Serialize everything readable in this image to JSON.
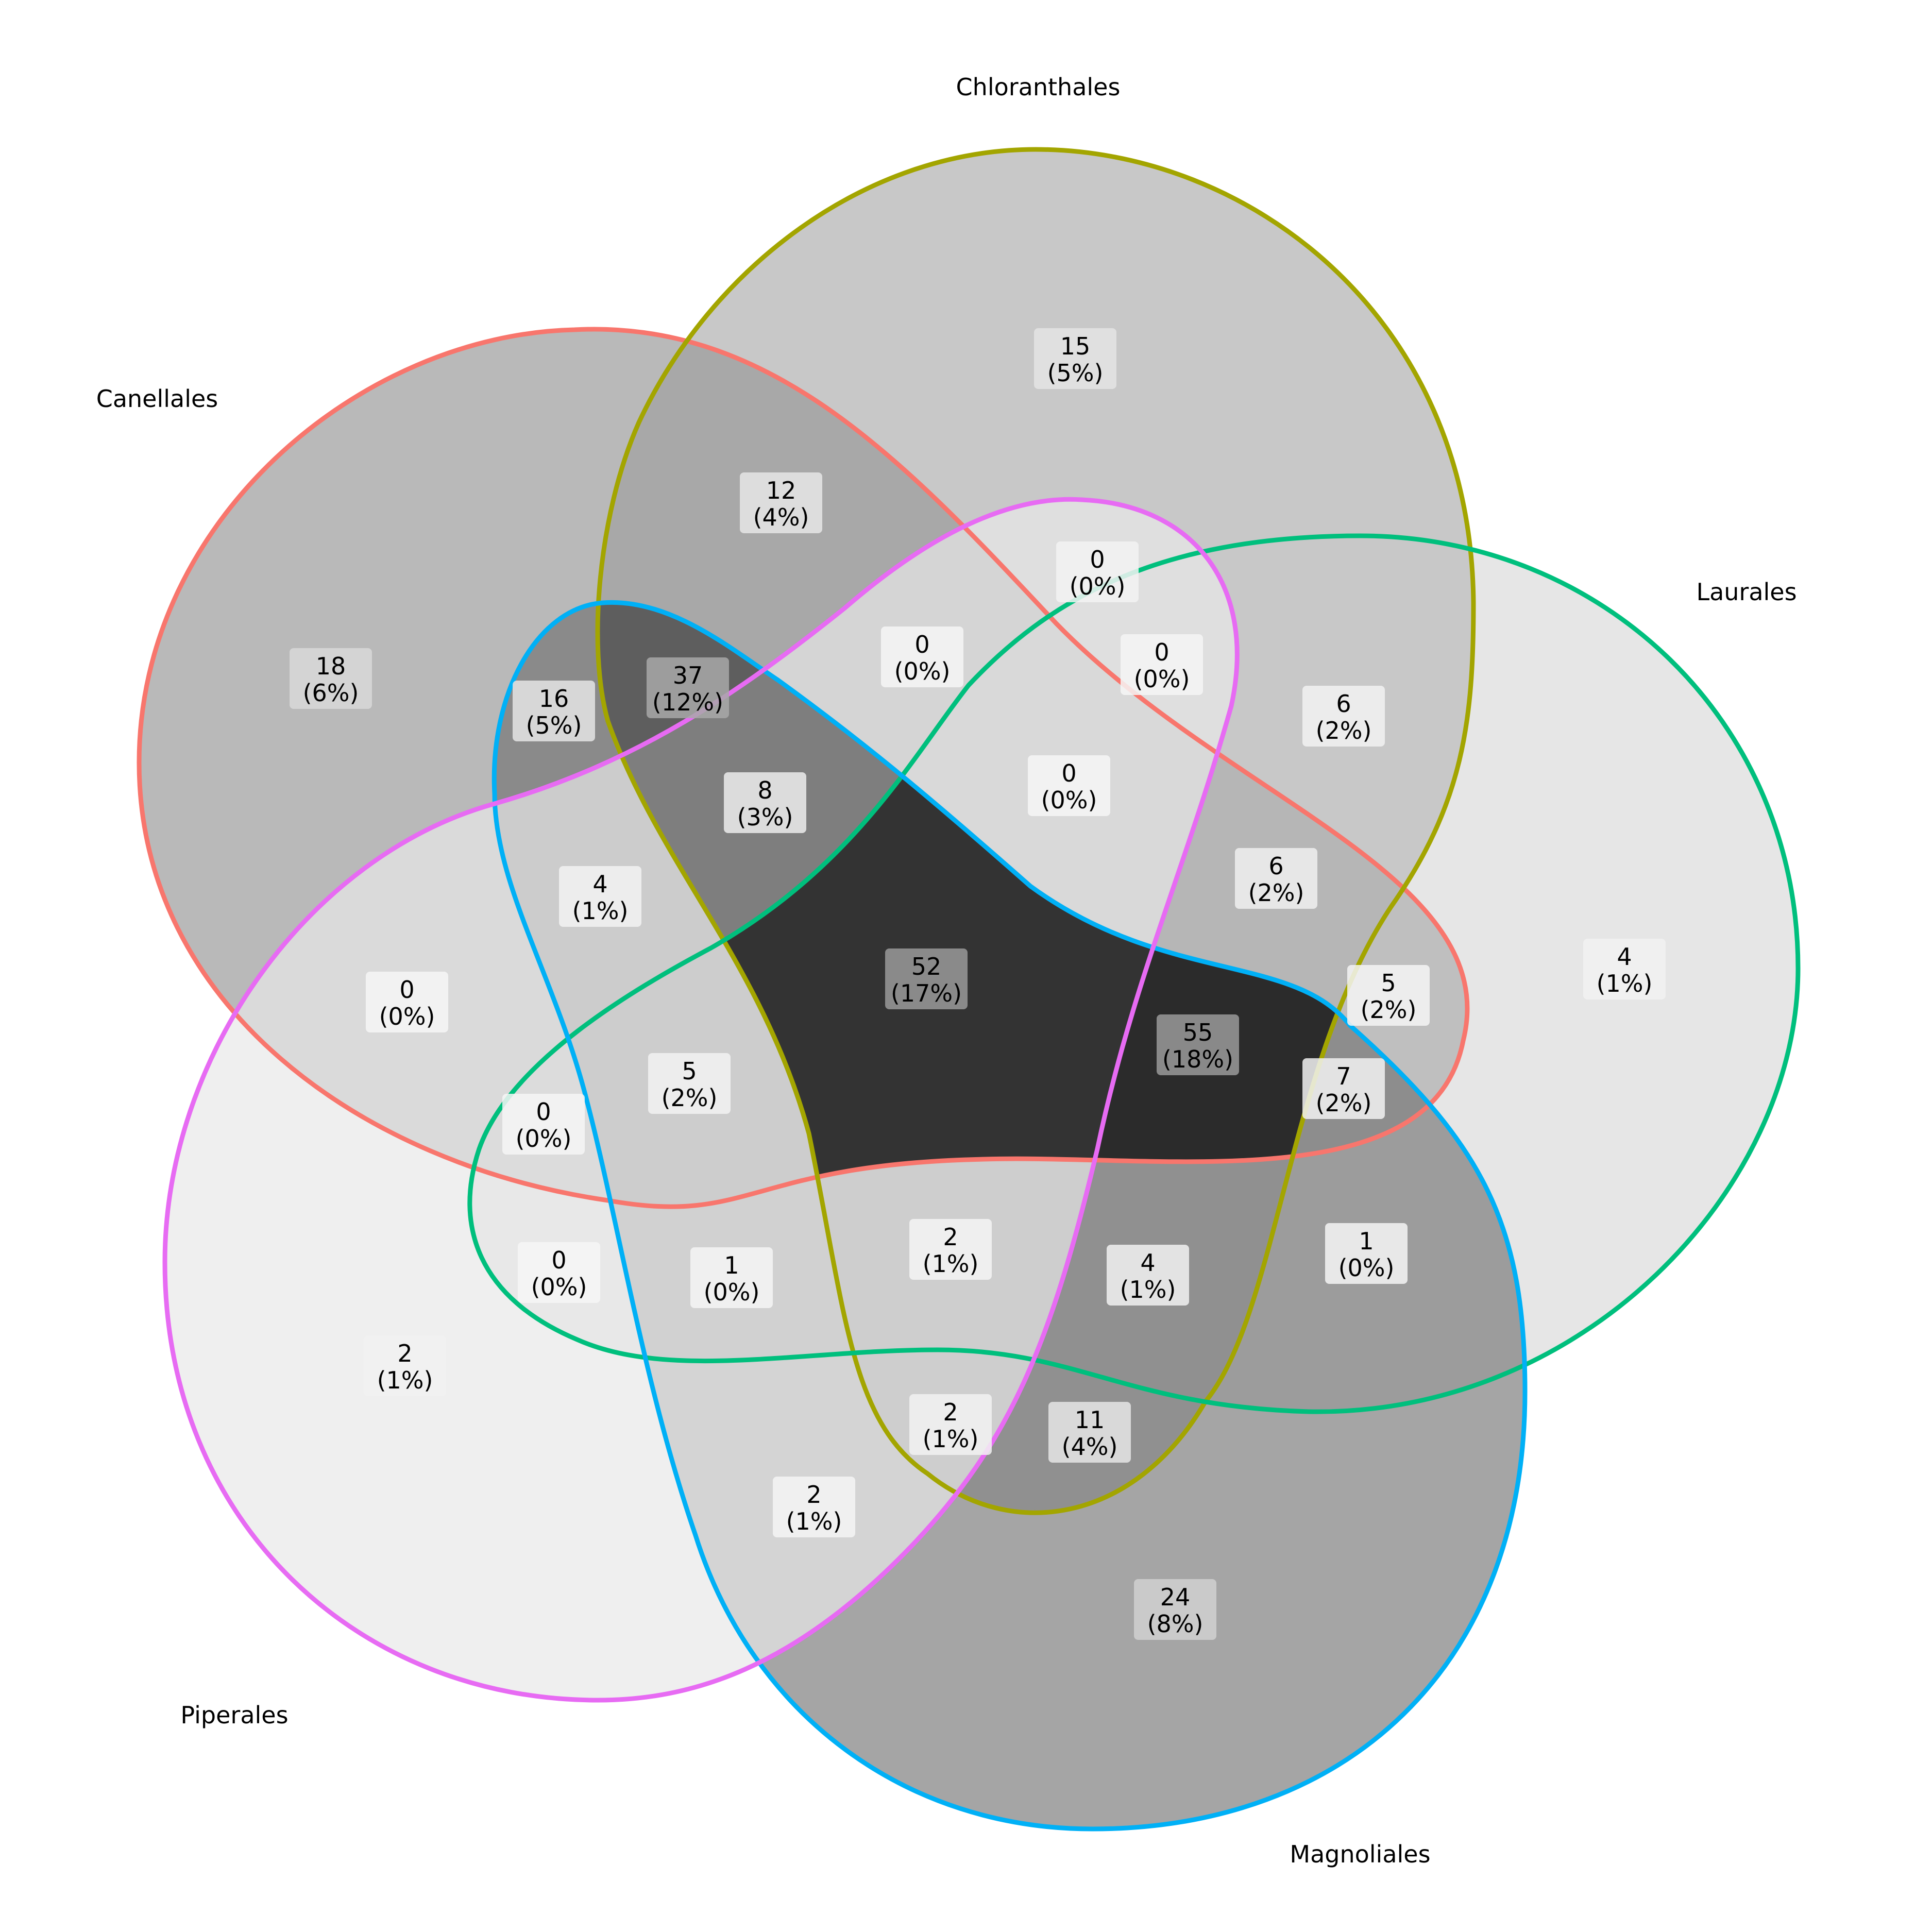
{
  "chart_data": {
    "type": "venn",
    "sets": [
      {
        "name": "Canellales",
        "color": "#F8766D"
      },
      {
        "name": "Chloranthales",
        "color": "#A3A500"
      },
      {
        "name": "Laurales",
        "color": "#00BF7D"
      },
      {
        "name": "Magnoliales",
        "color": "#00B0F6"
      },
      {
        "name": "Piperales",
        "color": "#E76BF3"
      }
    ],
    "regions": [
      {
        "sets": [
          "Canellales"
        ],
        "count": "18",
        "percent": "(6%)"
      },
      {
        "sets": [
          "Chloranthales"
        ],
        "count": "15",
        "percent": "(5%)"
      },
      {
        "sets": [
          "Laurales"
        ],
        "count": "4",
        "percent": "(1%)"
      },
      {
        "sets": [
          "Magnoliales"
        ],
        "count": "24",
        "percent": "(8%)"
      },
      {
        "sets": [
          "Piperales"
        ],
        "count": "2",
        "percent": "(1%)"
      },
      {
        "sets": [
          "Canellales",
          "Chloranthales"
        ],
        "count": "12",
        "percent": "(4%)"
      },
      {
        "sets": [
          "Canellales",
          "Magnoliales"
        ],
        "count": "16",
        "percent": "(5%)"
      },
      {
        "sets": [
          "Canellales",
          "Chloranthales",
          "Magnoliales"
        ],
        "count": "37",
        "percent": "(12%)"
      },
      {
        "sets": [
          "Canellales",
          "Chloranthales",
          "Piperales"
        ],
        "count": "0",
        "percent": "(0%)"
      },
      {
        "sets": [
          "Chloranthales",
          "Piperales"
        ],
        "count": "0",
        "percent": "(0%)"
      },
      {
        "sets": [
          "Chloranthales",
          "Laurales",
          "Piperales"
        ],
        "count": "0",
        "percent": "(0%)"
      },
      {
        "sets": [
          "Canellales",
          "Chloranthales",
          "Laurales",
          "Piperales"
        ],
        "count": "0",
        "percent": "(0%)"
      },
      {
        "sets": [
          "Chloranthales",
          "Laurales"
        ],
        "count": "6",
        "percent": "(2%)"
      },
      {
        "sets": [
          "Canellales",
          "Chloranthales",
          "Magnoliales",
          "Piperales"
        ],
        "count": "8",
        "percent": "(3%)"
      },
      {
        "sets": [
          "Canellales",
          "Chloranthales",
          "Laurales"
        ],
        "count": "6",
        "percent": "(2%)"
      },
      {
        "sets": [
          "Canellales",
          "Magnoliales",
          "Piperales"
        ],
        "count": "4",
        "percent": "(1%)"
      },
      {
        "sets": [
          "Canellales",
          "Piperales"
        ],
        "count": "0",
        "percent": "(0%)"
      },
      {
        "sets": [
          "Canellales",
          "Chloranthales",
          "Laurales",
          "Magnoliales",
          "Piperales"
        ],
        "count": "52",
        "percent": "(17%)"
      },
      {
        "sets": [
          "Canellales",
          "Chloranthales",
          "Laurales",
          "Magnoliales"
        ],
        "count": "55",
        "percent": "(18%)"
      },
      {
        "sets": [
          "Canellales",
          "Laurales"
        ],
        "count": "5",
        "percent": "(2%)"
      },
      {
        "sets": [
          "Canellales",
          "Laurales",
          "Magnoliales"
        ],
        "count": "7",
        "percent": "(2%)"
      },
      {
        "sets": [
          "Canellales",
          "Laurales",
          "Magnoliales",
          "Piperales"
        ],
        "count": "5",
        "percent": "(2%)"
      },
      {
        "sets": [
          "Canellales",
          "Laurales",
          "Piperales"
        ],
        "count": "0",
        "percent": "(0%)"
      },
      {
        "sets": [
          "Laurales",
          "Piperales"
        ],
        "count": "0",
        "percent": "(0%)"
      },
      {
        "sets": [
          "Laurales",
          "Magnoliales",
          "Piperales"
        ],
        "count": "1",
        "percent": "(0%)"
      },
      {
        "sets": [
          "Chloranthales",
          "Laurales",
          "Magnoliales",
          "Piperales"
        ],
        "count": "2",
        "percent": "(1%)"
      },
      {
        "sets": [
          "Chloranthales",
          "Laurales",
          "Magnoliales"
        ],
        "count": "4",
        "percent": "(1%)"
      },
      {
        "sets": [
          "Laurales",
          "Magnoliales"
        ],
        "count": "1",
        "percent": "(0%)"
      },
      {
        "sets": [
          "Chloranthales",
          "Magnoliales",
          "Piperales"
        ],
        "count": "2",
        "percent": "(1%)"
      },
      {
        "sets": [
          "Chloranthales",
          "Magnoliales"
        ],
        "count": "11",
        "percent": "(4%)"
      },
      {
        "sets": [
          "Magnoliales",
          "Piperales"
        ],
        "count": "2",
        "percent": "(1%)"
      }
    ]
  }
}
